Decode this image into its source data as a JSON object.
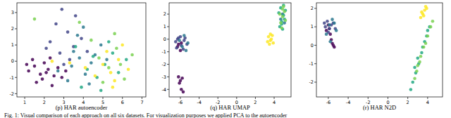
{
  "chart_data": [
    {
      "type": "scatter",
      "title": "(p) HAR autoencoder",
      "marker": "circle",
      "xlim": [
        0.6,
        7.2
      ],
      "xticks": [
        1,
        2,
        3,
        4,
        5,
        6,
        7
      ],
      "ylim": [
        -2.2,
        3.6
      ],
      "yticks": [
        -2,
        -1,
        0,
        1,
        2,
        3
      ],
      "series": [
        {
          "color": "#440154",
          "x": [
            1.2,
            1.5,
            1.8,
            2.0,
            2.2,
            2.5,
            1.4,
            1.9,
            2.3,
            2.7,
            1.6,
            2.1,
            2.9,
            1.1,
            2.4,
            3.1
          ],
          "values": [
            -0.6,
            -0.3,
            -0.8,
            -0.1,
            -0.5,
            -0.9,
            0.1,
            -1.1,
            0.2,
            -0.4,
            -1.3,
            -0.7,
            -1.0,
            -0.2,
            -1.5,
            -0.6
          ]
        },
        {
          "color": "#414487",
          "x": [
            2.3,
            2.8,
            3.2,
            3.5,
            2.6,
            3.9,
            3.0,
            2.1,
            3.6,
            4.2,
            2.9,
            3.3
          ],
          "values": [
            1.2,
            0.5,
            1.8,
            0.9,
            2.3,
            1.4,
            -0.2,
            0.8,
            2.8,
            0.6,
            3.2,
            0.1
          ]
        },
        {
          "color": "#2a788e",
          "x": [
            3.4,
            3.8,
            4.1,
            4.6,
            3.2,
            4.9,
            3.7,
            4.3,
            2.7,
            5.2,
            4.0,
            3.5,
            4.4
          ],
          "values": [
            -0.3,
            0.2,
            -0.8,
            0.4,
            -1.2,
            1.0,
            1.6,
            -1.4,
            -0.6,
            0.1,
            2.1,
            0.6,
            -0.1
          ]
        },
        {
          "color": "#22a884",
          "x": [
            4.2,
            4.7,
            5.1,
            5.5,
            3.9,
            4.5,
            5.8,
            4.9,
            5.3,
            3.6,
            6.2
          ],
          "values": [
            -0.5,
            -1.0,
            -0.2,
            0.5,
            -1.6,
            0.3,
            -0.7,
            -1.8,
            1.2,
            0.9,
            0.1
          ]
        },
        {
          "color": "#7ad151",
          "x": [
            4.8,
            5.3,
            5.7,
            6.1,
            4.4,
            5.0,
            6.5,
            5.6,
            3.8,
            5.9,
            1.5
          ],
          "values": [
            0.2,
            -0.4,
            0.8,
            -1.1,
            1.3,
            -1.3,
            0.4,
            1.7,
            2.4,
            -0.2,
            2.6
          ]
        },
        {
          "color": "#fde725",
          "x": [
            5.0,
            5.4,
            5.8,
            4.6,
            6.3,
            5.2,
            4.1,
            5.6,
            3.3,
            6.0,
            5.5,
            2.4
          ],
          "values": [
            -0.2,
            -0.7,
            0.1,
            -0.9,
            -0.5,
            0.6,
            -0.4,
            -1.2,
            -0.1,
            1.0,
            -1.6,
            0.0
          ]
        }
      ]
    },
    {
      "type": "scatter",
      "title": "(q) HAR UMAP",
      "marker": "circle",
      "xlim": [
        -7.2,
        5.8
      ],
      "xticks": [
        -6,
        -4,
        -2,
        0,
        2,
        4
      ],
      "ylim": [
        -4.6,
        2.9
      ],
      "yticks": [
        -4,
        -3,
        -2,
        -1,
        0,
        1,
        2
      ],
      "series": [
        {
          "color": "#440154",
          "x": [
            -6.2,
            -6.0,
            -5.8,
            -6.1,
            -5.9,
            -5.7,
            -6.3,
            -5.9,
            -6.0,
            -6.2
          ],
          "values": [
            -3.0,
            -3.3,
            -3.1,
            -3.5,
            -4.0,
            -4.2,
            -0.6,
            -0.3,
            -0.9,
            -0.4
          ]
        },
        {
          "color": "#414487",
          "x": [
            -6.5,
            -6.2,
            -5.9,
            -5.6,
            -6.4,
            -6.0,
            -5.7,
            -5.3,
            -6.3,
            -5.5
          ],
          "values": [
            -0.2,
            0.1,
            -0.5,
            -0.1,
            -0.7,
            0.2,
            -0.8,
            -0.4,
            0.0,
            0.1
          ]
        },
        {
          "color": "#2a788e",
          "x": [
            -5.8,
            -5.4,
            -5.2,
            -6.1,
            -5.6,
            4.7,
            4.9,
            5.1
          ],
          "values": [
            -0.6,
            -0.9,
            -0.3,
            -0.1,
            0.3,
            1.6,
            2.0,
            1.3
          ]
        },
        {
          "color": "#22a884",
          "x": [
            4.6,
            4.8,
            5.0,
            5.2,
            4.7,
            4.9,
            5.1,
            4.5,
            5.0,
            4.8
          ],
          "values": [
            1.0,
            1.4,
            1.9,
            2.3,
            2.5,
            0.8,
            1.6,
            2.1,
            2.7,
            1.2
          ]
        },
        {
          "color": "#7ad151",
          "x": [
            4.7,
            4.9,
            5.1,
            4.8,
            5.0,
            5.2,
            4.6,
            4.9
          ],
          "values": [
            1.3,
            1.8,
            2.2,
            0.9,
            2.6,
            1.5,
            2.0,
            2.4
          ]
        },
        {
          "color": "#fde725",
          "x": [
            3.4,
            3.6,
            3.8,
            3.5,
            3.7,
            3.3,
            3.9,
            3.6
          ],
          "values": [
            0.2,
            -0.1,
            0.3,
            -0.4,
            0.0,
            -0.2,
            -0.3,
            0.4
          ]
        }
      ]
    },
    {
      "type": "scatter",
      "title": "(r) HAR N2D",
      "marker": "circle",
      "xlim": [
        -7.2,
        5.5
      ],
      "xticks": [
        -6,
        -4,
        -2,
        0,
        2,
        4
      ],
      "ylim": [
        -2.8,
        2.3
      ],
      "yticks": [
        -2,
        -1,
        0,
        1,
        2
      ],
      "series": [
        {
          "color": "#440154",
          "x": [
            -6.2,
            -6.0,
            -5.8,
            -5.6,
            -5.4,
            -5.7,
            -5.5,
            -5.9
          ],
          "values": [
            0.8,
            1.1,
            0.6,
            0.1,
            -0.1,
            0.3,
            0.0,
            0.9
          ]
        },
        {
          "color": "#414487",
          "x": [
            -6.4,
            -6.1,
            -5.9,
            -5.7,
            -6.3,
            -6.0,
            -5.5,
            -5.3
          ],
          "values": [
            1.2,
            1.3,
            0.9,
            1.1,
            1.0,
            0.7,
            1.2,
            0.9
          ]
        },
        {
          "color": "#2a788e",
          "x": [
            -5.9,
            -5.6,
            -5.2,
            -6.2,
            -5.4,
            -5.8
          ],
          "values": [
            1.1,
            1.4,
            0.8,
            0.6,
            1.2,
            0.2
          ]
        },
        {
          "color": "#22a884",
          "x": [
            4.0,
            3.7,
            3.4,
            3.1,
            2.8,
            2.5,
            2.3,
            3.9,
            3.5,
            3.0,
            2.7,
            4.2
          ],
          "values": [
            0.8,
            0.2,
            -0.4,
            -1.0,
            -1.5,
            -2.0,
            -2.4,
            0.5,
            -0.1,
            -0.7,
            -1.2,
            1.0
          ]
        },
        {
          "color": "#7ad151",
          "x": [
            4.3,
            4.0,
            3.6,
            3.3,
            3.0,
            2.7,
            3.8,
            3.2,
            2.9,
            4.5
          ],
          "values": [
            1.0,
            0.5,
            -0.1,
            -0.6,
            -1.1,
            -1.8,
            0.1,
            -0.9,
            -1.4,
            1.3
          ]
        },
        {
          "color": "#fde725",
          "x": [
            3.3,
            3.5,
            3.7,
            3.9,
            3.6,
            3.4,
            3.8
          ],
          "values": [
            1.5,
            1.7,
            1.9,
            2.0,
            1.6,
            1.8,
            2.1
          ]
        }
      ]
    }
  ],
  "caption": "Fig. 1: Visual comparison of each approach on all six datasets. For visualization purposes we applied PCA to the autoencoder"
}
